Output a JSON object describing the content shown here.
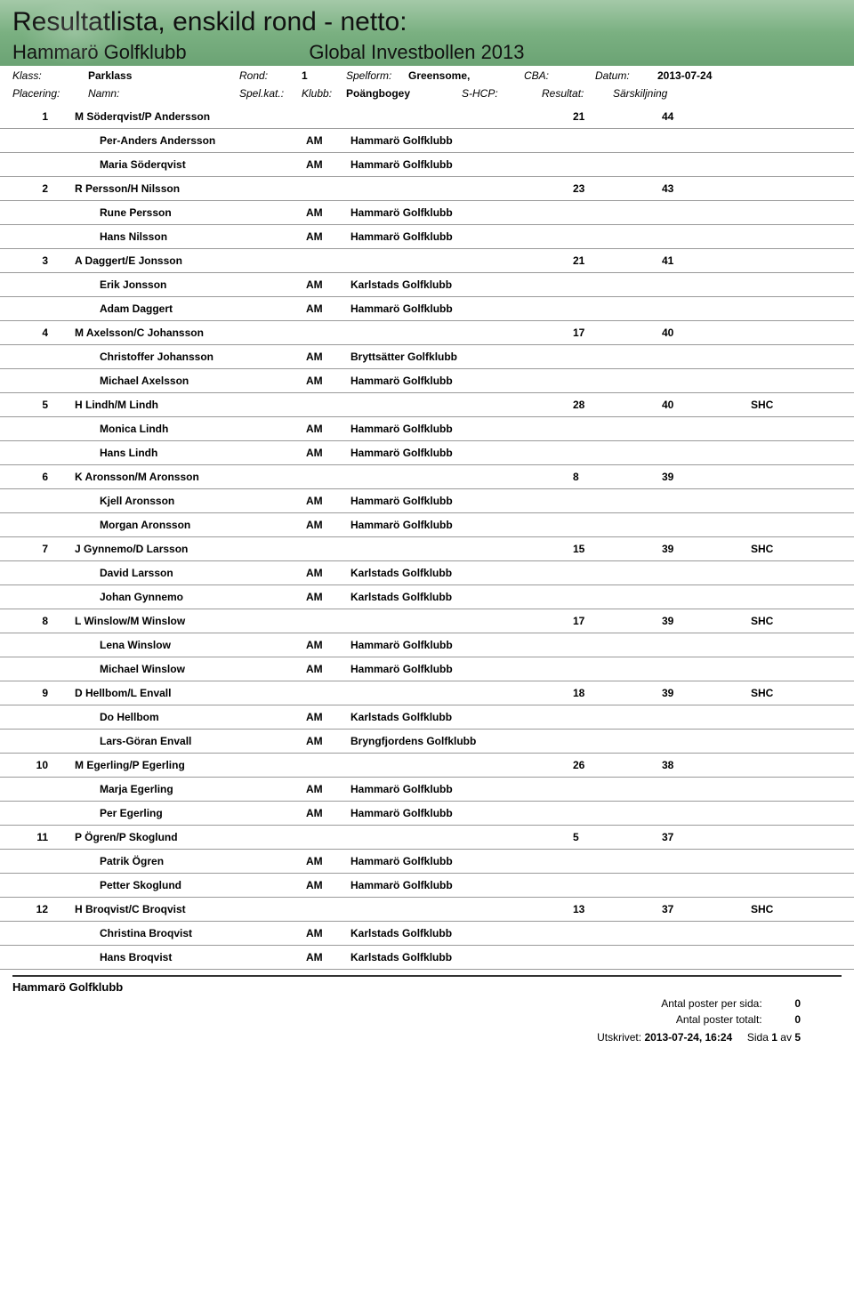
{
  "header": {
    "title": "Resultatlista, enskild rond - netto:",
    "club": "Hammarö Golfklubb",
    "competition": "Global Investbollen 2013"
  },
  "meta": {
    "klass_lbl": "Klass:",
    "klass_val": "Parklass",
    "rond_lbl": "Rond:",
    "rond_val": "1",
    "spelform_lbl": "Spelform:",
    "spelform_val": "Greensome,",
    "spelform_val2": "Poängbogey",
    "cba_lbl": "CBA:",
    "datum_lbl": "Datum:",
    "datum_val": "2013-07-24",
    "placering_lbl": "Placering:",
    "namn_lbl": "Namn:",
    "spelkat_lbl": "Spel.kat.:",
    "klubb_lbl": "Klubb:",
    "shcp_lbl": "S-HCP:",
    "resultat_lbl": "Resultat:",
    "sarsk_lbl": "Särskiljning"
  },
  "cols": {
    "cat": "AM",
    "hg": "Hammarö Golfklubb",
    "kg": "Karlstads Golfklubb",
    "bsg": "Bryttsätter Golfklubb",
    "bfg": "Bryngfjordens Golfklubb"
  },
  "rows": [
    {
      "pos": "1",
      "team": "M Söderqvist/P Andersson",
      "shcp": "21",
      "res": "44",
      "sk": "",
      "p": [
        {
          "n": "Per-Anders Andersson",
          "c": "hg"
        },
        {
          "n": "Maria Söderqvist",
          "c": "hg"
        }
      ]
    },
    {
      "pos": "2",
      "team": "R Persson/H Nilsson",
      "shcp": "23",
      "res": "43",
      "sk": "",
      "p": [
        {
          "n": "Rune Persson",
          "c": "hg"
        },
        {
          "n": "Hans Nilsson",
          "c": "hg"
        }
      ]
    },
    {
      "pos": "3",
      "team": "A Daggert/E Jonsson",
      "shcp": "21",
      "res": "41",
      "sk": "",
      "p": [
        {
          "n": "Erik Jonsson",
          "c": "kg"
        },
        {
          "n": "Adam Daggert",
          "c": "hg"
        }
      ]
    },
    {
      "pos": "4",
      "team": "M Axelsson/C Johansson",
      "shcp": "17",
      "res": "40",
      "sk": "",
      "p": [
        {
          "n": "Christoffer Johansson",
          "c": "bsg"
        },
        {
          "n": "Michael Axelsson",
          "c": "hg"
        }
      ]
    },
    {
      "pos": "5",
      "team": "H Lindh/M Lindh",
      "shcp": "28",
      "res": "40",
      "sk": "SHC",
      "p": [
        {
          "n": "Monica Lindh",
          "c": "hg"
        },
        {
          "n": "Hans Lindh",
          "c": "hg"
        }
      ]
    },
    {
      "pos": "6",
      "team": "K Aronsson/M Aronsson",
      "shcp": "8",
      "res": "39",
      "sk": "",
      "p": [
        {
          "n": "Kjell Aronsson",
          "c": "hg"
        },
        {
          "n": "Morgan Aronsson",
          "c": "hg"
        }
      ]
    },
    {
      "pos": "7",
      "team": "J Gynnemo/D Larsson",
      "shcp": "15",
      "res": "39",
      "sk": "SHC",
      "p": [
        {
          "n": "David Larsson",
          "c": "kg"
        },
        {
          "n": "Johan Gynnemo",
          "c": "kg"
        }
      ]
    },
    {
      "pos": "8",
      "team": "L Winslow/M Winslow",
      "shcp": "17",
      "res": "39",
      "sk": "SHC",
      "p": [
        {
          "n": "Lena Winslow",
          "c": "hg"
        },
        {
          "n": "Michael Winslow",
          "c": "hg"
        }
      ]
    },
    {
      "pos": "9",
      "team": "D Hellbom/L Envall",
      "shcp": "18",
      "res": "39",
      "sk": "SHC",
      "p": [
        {
          "n": "Do Hellbom",
          "c": "kg"
        },
        {
          "n": "Lars-Göran Envall",
          "c": "bfg"
        }
      ]
    },
    {
      "pos": "10",
      "team": "M Egerling/P Egerling",
      "shcp": "26",
      "res": "38",
      "sk": "",
      "p": [
        {
          "n": "Marja Egerling",
          "c": "hg"
        },
        {
          "n": "Per Egerling",
          "c": "hg"
        }
      ]
    },
    {
      "pos": "11",
      "team": "P Ögren/P Skoglund",
      "shcp": "5",
      "res": "37",
      "sk": "",
      "p": [
        {
          "n": "Patrik Ögren",
          "c": "hg"
        },
        {
          "n": "Petter Skoglund",
          "c": "hg"
        }
      ]
    },
    {
      "pos": "12",
      "team": "H Broqvist/C Broqvist",
      "shcp": "13",
      "res": "37",
      "sk": "SHC",
      "p": [
        {
          "n": "Christina Broqvist",
          "c": "kg"
        },
        {
          "n": "Hans Broqvist",
          "c": "kg"
        }
      ]
    }
  ],
  "footer": {
    "club": "Hammarö Golfklubb",
    "apps_lbl": "Antal poster per sida:",
    "apps_val": "0",
    "apt_lbl": "Antal poster totalt:",
    "apt_val": "0",
    "utskrivet_lbl": "Utskrivet:",
    "utskrivet_val": "2013-07-24, 16:24",
    "sida_lbl": "Sida",
    "sida_cur": "1",
    "sida_av": "av",
    "sida_tot": "5"
  }
}
